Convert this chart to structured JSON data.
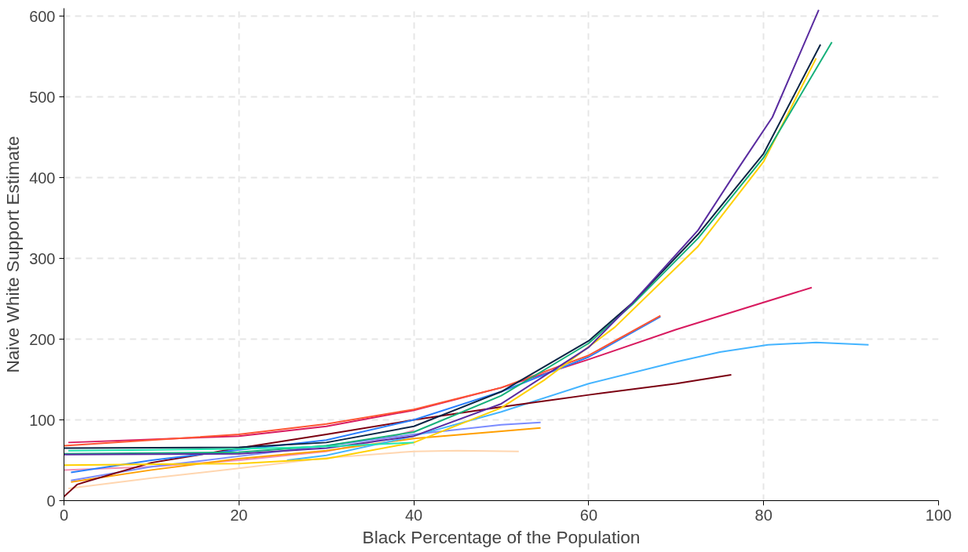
{
  "chart_data": {
    "type": "line",
    "xlabel": "Black Percentage of the Population",
    "ylabel": "Naive White Support Estimate",
    "xlim": [
      0,
      100
    ],
    "ylim": [
      0,
      610
    ],
    "xticks": [
      0,
      20,
      40,
      60,
      80,
      100
    ],
    "yticks": [
      0,
      100,
      200,
      300,
      400,
      500,
      600
    ],
    "grid": true,
    "marker": "none",
    "line_style": "solid",
    "series": [
      {
        "color": "#ffd6b0",
        "x": [
          0.5,
          10,
          20,
          30,
          40,
          45,
          52
        ],
        "values": [
          15,
          28,
          40,
          53,
          61,
          62,
          61
        ]
      },
      {
        "color": "#f48fb1",
        "x": [
          0,
          10,
          20,
          30,
          35,
          40
        ],
        "values": [
          38,
          42,
          50,
          61,
          72,
          87
        ]
      },
      {
        "color": "#ff9f00",
        "x": [
          0.8,
          10,
          20,
          30,
          40,
          50,
          54.5
        ],
        "values": [
          23,
          38,
          52,
          62,
          77,
          86,
          90
        ]
      },
      {
        "color": "#7b8cff",
        "x": [
          0.8,
          10,
          20,
          30,
          40,
          50,
          54.5
        ],
        "values": [
          25,
          42,
          55,
          68,
          82,
          94,
          97
        ]
      },
      {
        "color": "#44b4ff",
        "x": [
          25.5,
          30,
          40,
          50,
          60,
          70,
          75,
          80.5,
          86,
          92
        ],
        "values": [
          50,
          56,
          80,
          110,
          145,
          172,
          184,
          193,
          196,
          193
        ]
      },
      {
        "color": "#7b0011",
        "x": [
          0,
          1.5,
          3,
          10,
          20,
          30,
          40,
          50,
          60,
          70,
          76.3
        ],
        "values": [
          5,
          20,
          25,
          47,
          65,
          82,
          100,
          116,
          131,
          145,
          156
        ]
      },
      {
        "color": "#d81b60",
        "x": [
          0.5,
          20,
          30,
          40,
          50,
          60,
          70,
          85.5
        ],
        "values": [
          72,
          80,
          92,
          112,
          140,
          175,
          212,
          264
        ]
      },
      {
        "color": "#2a7fff",
        "x": [
          0.8,
          10,
          20,
          30,
          40,
          50,
          60,
          68.2
        ],
        "values": [
          35,
          50,
          63,
          75,
          100,
          135,
          178,
          228
        ]
      },
      {
        "color": "#ff5533",
        "x": [
          0,
          10,
          20,
          30,
          40,
          50,
          60,
          68.2
        ],
        "values": [
          68,
          75,
          82,
          95,
          113,
          140,
          180,
          229
        ]
      },
      {
        "color": "#ffd000",
        "x": [
          0,
          20,
          30,
          40,
          50,
          55,
          63,
          72.5,
          80,
          86
        ],
        "values": [
          44,
          46,
          52,
          72,
          115,
          150,
          215,
          315,
          420,
          548
        ]
      },
      {
        "color": "#16b07a",
        "x": [
          0,
          20,
          30,
          40,
          50,
          60,
          65,
          72.5,
          80,
          87.8
        ],
        "values": [
          58,
          60,
          68,
          85,
          130,
          195,
          243,
          325,
          425,
          568
        ]
      },
      {
        "color": "#0b2545",
        "x": [
          0,
          20,
          30,
          40,
          50,
          60,
          65,
          72.5,
          80,
          86.5
        ],
        "values": [
          65,
          66,
          72,
          92,
          135,
          198,
          245,
          330,
          430,
          565
        ]
      },
      {
        "color": "#5a2ca0",
        "x": [
          0,
          20,
          30,
          40,
          50,
          60,
          65,
          72.5,
          77,
          81,
          86.3
        ],
        "values": [
          57,
          58,
          65,
          80,
          120,
          190,
          245,
          335,
          410,
          475,
          608
        ]
      },
      {
        "color": "#22e8b0",
        "x": [
          0.5,
          10,
          20,
          30,
          40
        ],
        "values": [
          62,
          63,
          64,
          67,
          72
        ]
      }
    ]
  }
}
